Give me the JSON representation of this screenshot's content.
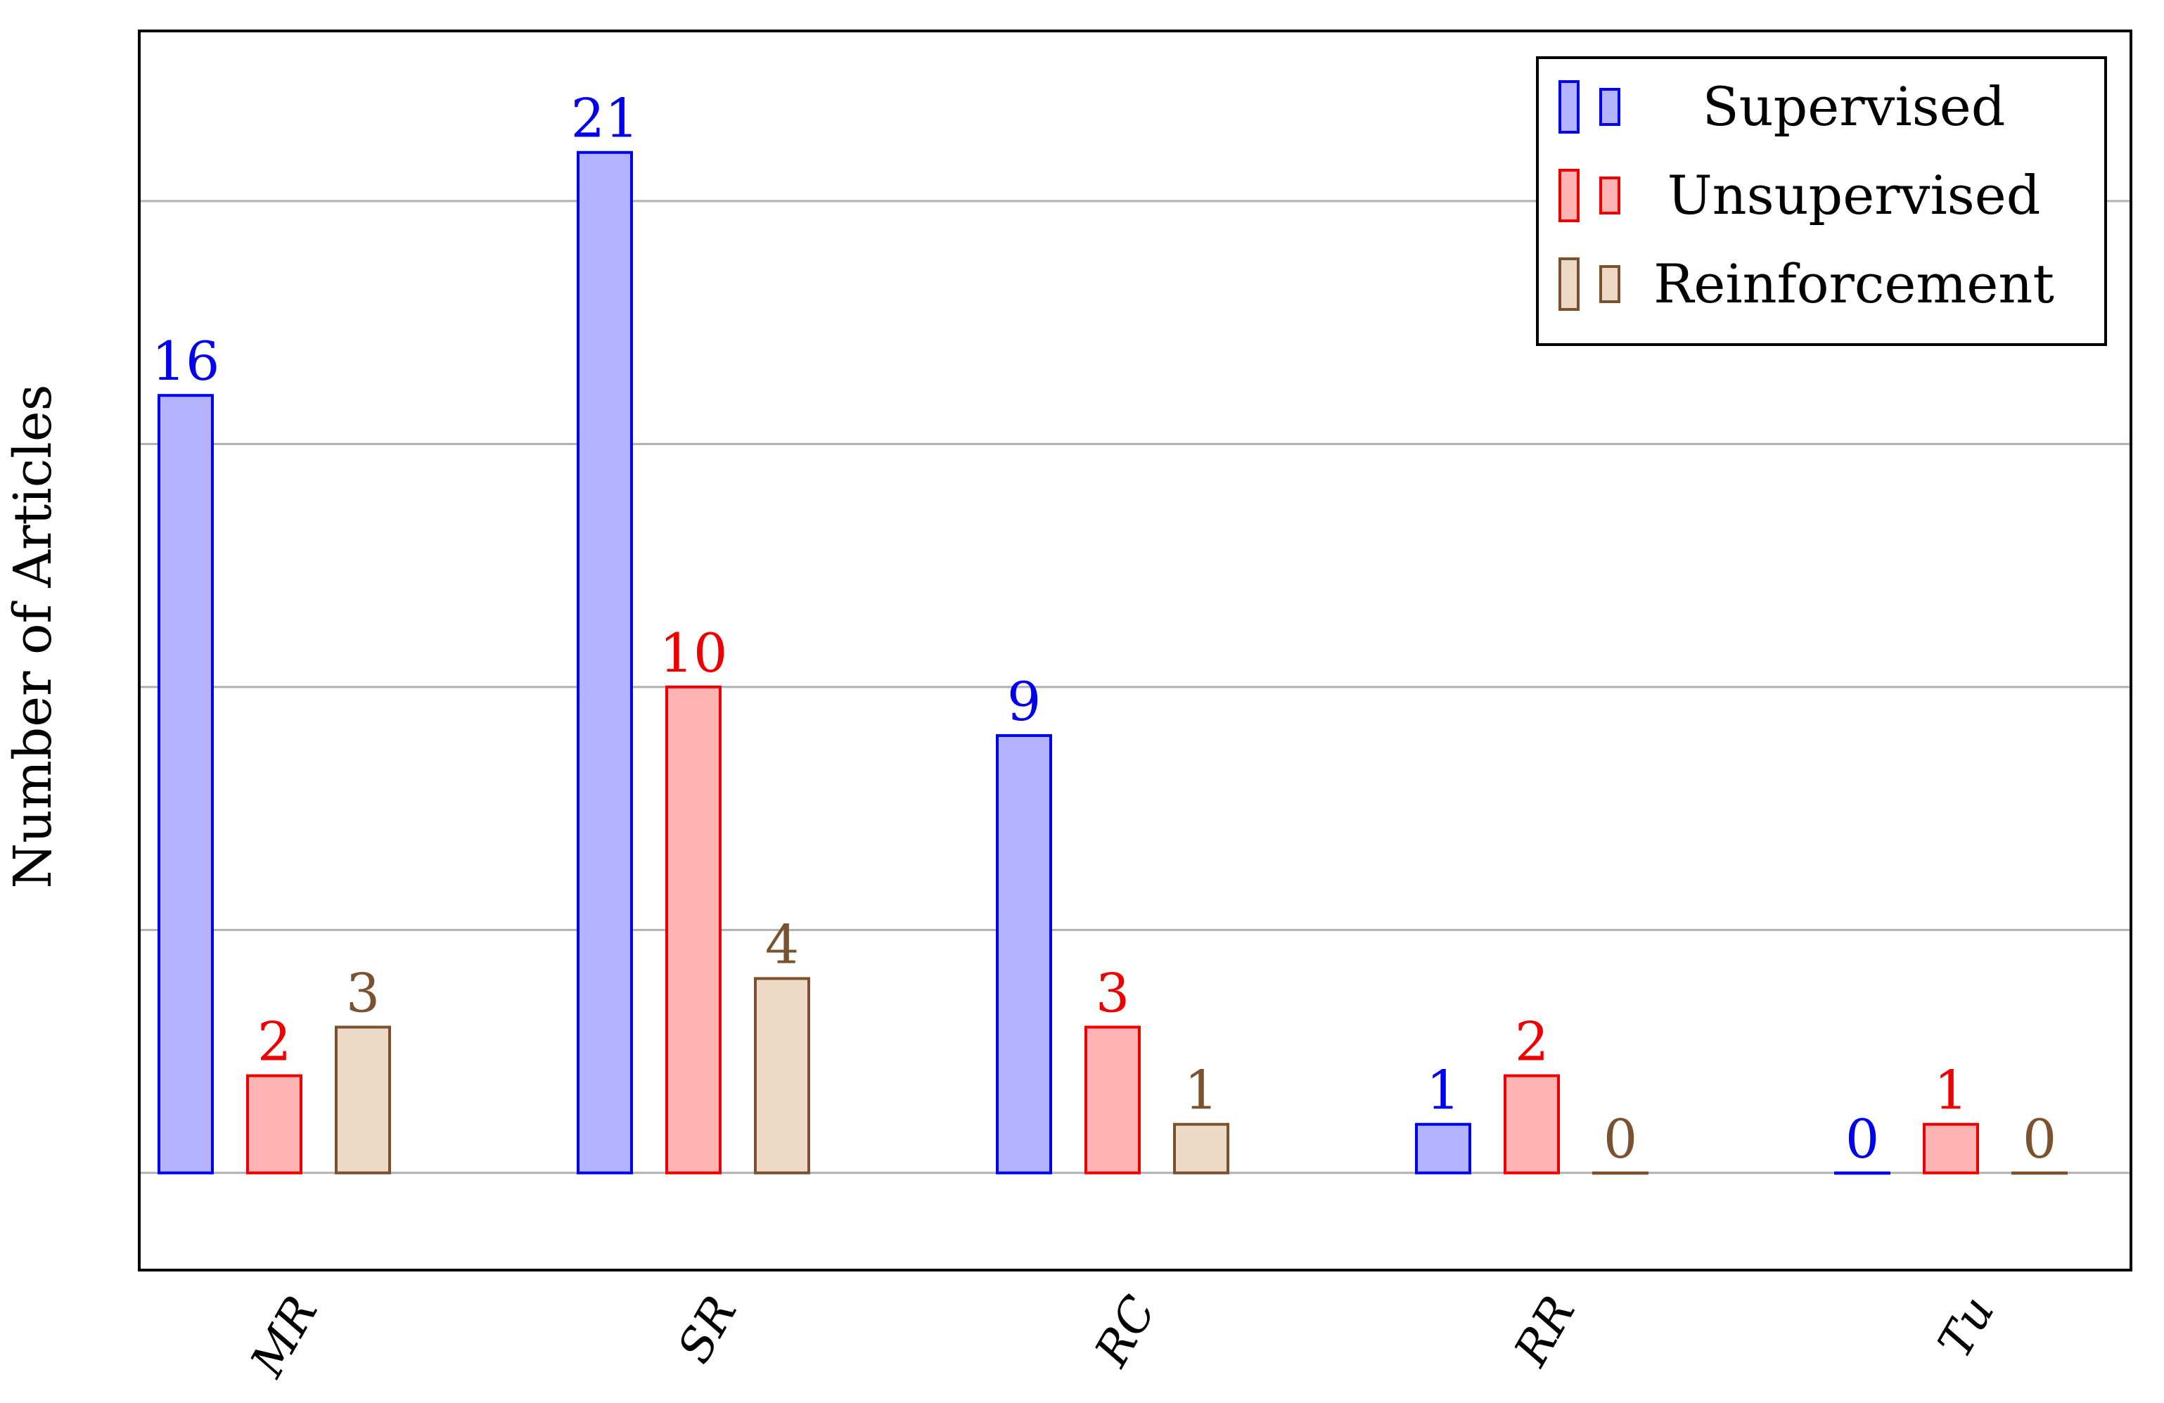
{
  "chart_data": {
    "type": "bar",
    "title": "",
    "xlabel": "",
    "ylabel": "Number of Articles",
    "categories": [
      "MR",
      "SR",
      "RC",
      "RR",
      "Tu"
    ],
    "series": [
      {
        "name": "Supervised",
        "values": [
          16,
          21,
          9,
          1,
          0
        ],
        "fill": "#b3b3ff",
        "stroke": "#0000ee",
        "label_color": "#0000ee"
      },
      {
        "name": "Unsupervised",
        "values": [
          2,
          10,
          3,
          2,
          1
        ],
        "fill": "#ffb3b3",
        "stroke": "#ee0000",
        "label_color": "#ee0000"
      },
      {
        "name": "Reinforcement",
        "values": [
          3,
          4,
          1,
          0,
          0
        ],
        "fill": "#ecd9c6",
        "stroke": "#7a5230",
        "label_color": "#7a5230"
      }
    ],
    "ylim": [
      -2,
      23.5
    ],
    "y_gridlines": [
      0,
      5,
      10,
      15,
      20
    ],
    "grid": "horizontal",
    "legend_position": "top-right",
    "x_tick_rotation": "diagonal"
  }
}
